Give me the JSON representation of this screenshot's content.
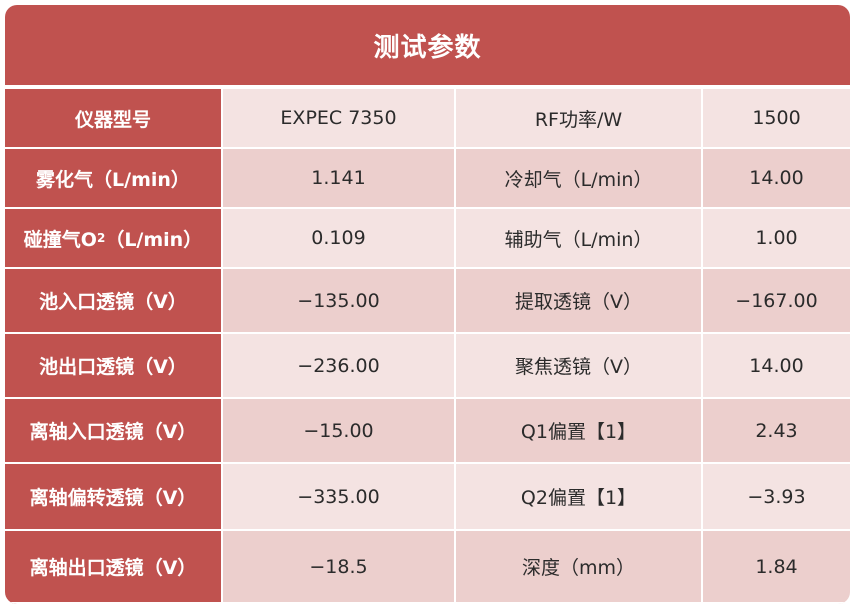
{
  "title": "测试参数",
  "rows": [
    {
      "label1": "仪器型号",
      "value1": "EXPEC 7350",
      "label2": "RF功率/W",
      "value2": "1500"
    },
    {
      "label1": "雾化气（L/min）",
      "value1": "1.141",
      "label2": "冷却气（L/min）",
      "value2": "14.00"
    },
    {
      "label1_pre": "碰撞气O",
      "label1_sub": "2",
      "label1_post": "（L/min）",
      "value1": "0.109",
      "label2": "辅助气（L/min）",
      "value2": "1.00"
    },
    {
      "label1": "池入口透镜（V）",
      "value1": "−135.00",
      "label2": "提取透镜（V）",
      "value2": "−167.00"
    },
    {
      "label1": "池出口透镜（V）",
      "value1": "−236.00",
      "label2": "聚焦透镜（V）",
      "value2": "14.00"
    },
    {
      "label1": "离轴入口透镜（V）",
      "value1": "−15.00",
      "label2": "Q1偏置【1】",
      "value2": "2.43"
    },
    {
      "label1": "离轴偏转透镜（V）",
      "value1": "−335.00",
      "label2": "Q2偏置【1】",
      "value2": "−3.93"
    },
    {
      "label1": "离轴出口透镜（V）",
      "value1": "−18.5",
      "label2": "深度（mm）",
      "value2": "1.84"
    }
  ],
  "colors": {
    "header_bg": "#c0524f",
    "row_light": "#f4e3e2",
    "row_dark": "#eccfcd",
    "text_dark": "#2b2b2b",
    "text_light": "#ffffff"
  }
}
